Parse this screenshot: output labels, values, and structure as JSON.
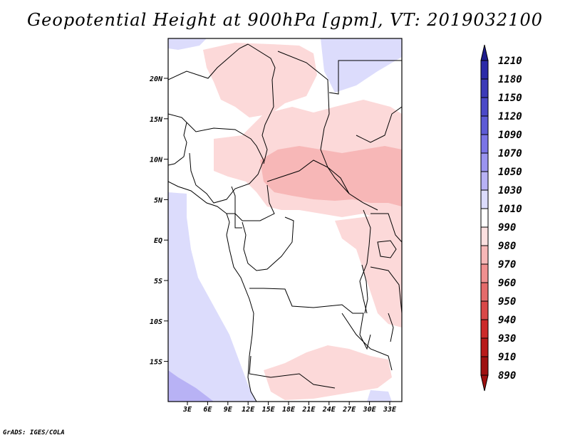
{
  "title": "Geopotential Height at 900hPa [gpm], VT: 2019032100",
  "credit": "GrADS: IGES/COLA",
  "map": {
    "lat_ticks": [
      "20N",
      "15N",
      "10N",
      "5N",
      "EQ",
      "5S",
      "10S",
      "15S"
    ],
    "lon_ticks": [
      "3E",
      "6E",
      "9E",
      "12E",
      "15E",
      "18E",
      "21E",
      "24E",
      "27E",
      "30E",
      "33E"
    ],
    "shading": {
      "low_color": "#fcd9d9",
      "mid_color": "#f7b7b7",
      "high_color": "#dcdcfc",
      "higher_color": "#b8b2f5"
    }
  },
  "colorbar": {
    "levels": [
      "1210",
      "1180",
      "1150",
      "1120",
      "1090",
      "1070",
      "1050",
      "1030",
      "1010",
      "990",
      "980",
      "970",
      "960",
      "950",
      "940",
      "930",
      "910",
      "890"
    ],
    "colors": [
      "#1e1c8c",
      "#2b2aa8",
      "#3c3ab8",
      "#4b49c8",
      "#5d5bd6",
      "#7a74e6",
      "#9a94ef",
      "#b8b2f5",
      "#dcdcfc",
      "#ffffff",
      "#fce0e0",
      "#f7b7b7",
      "#f09090",
      "#e56b6b",
      "#d94848",
      "#cc2a2a",
      "#b81a1a",
      "#9e1010"
    ]
  }
}
